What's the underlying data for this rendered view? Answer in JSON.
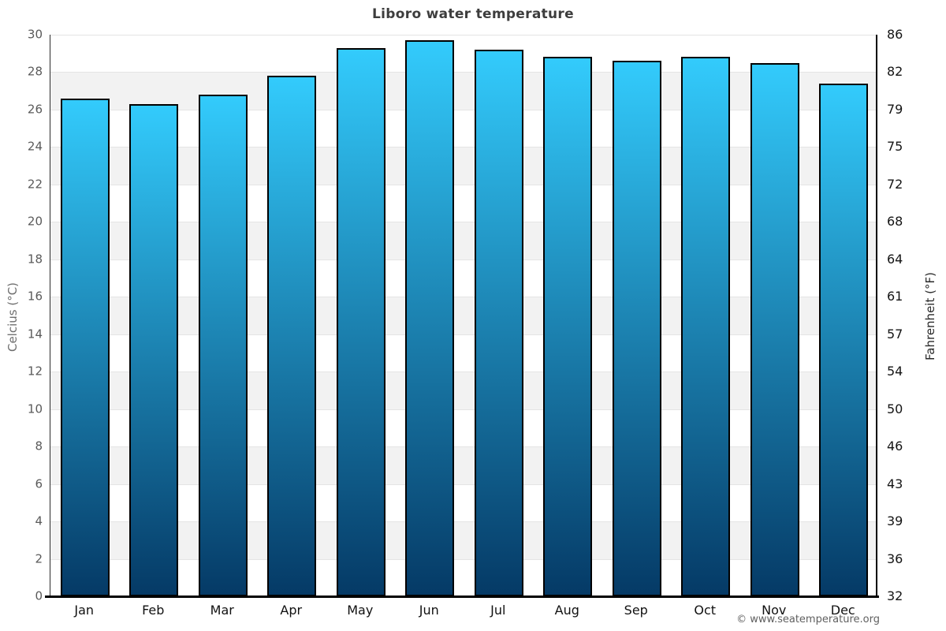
{
  "title": "Liboro water temperature",
  "footer": {
    "credit": "© www.seatemperature.org"
  },
  "chart_data": {
    "type": "bar",
    "title": "Liboro water temperature",
    "categories": [
      "Jan",
      "Feb",
      "Mar",
      "Apr",
      "May",
      "Jun",
      "Jul",
      "Aug",
      "Sep",
      "Oct",
      "Nov",
      "Dec"
    ],
    "values": [
      26.6,
      26.3,
      26.8,
      27.8,
      29.3,
      29.7,
      29.2,
      28.8,
      28.6,
      28.8,
      28.5,
      27.4
    ],
    "ylabel_left": "Celcius (°C)",
    "ylabel_right": "Fahrenheit (°F)",
    "ylim": [
      0,
      30
    ],
    "celsius_ticks": [
      0,
      2,
      4,
      6,
      8,
      10,
      12,
      14,
      16,
      18,
      20,
      22,
      24,
      26,
      28,
      30
    ],
    "fahrenheit_ticks": [
      32,
      36,
      39,
      43,
      46,
      50,
      54,
      57,
      61,
      64,
      68,
      72,
      75,
      79,
      82,
      86
    ],
    "grid": true,
    "legend": false,
    "colors": {
      "bar_gradient_top": "#33CBFC",
      "bar_gradient_bottom": "#053A66",
      "bar_border": "#000000",
      "band_light": "#ffffff",
      "band_shaded": "#f2f2f2",
      "gridline": "#e4e4e4"
    }
  }
}
